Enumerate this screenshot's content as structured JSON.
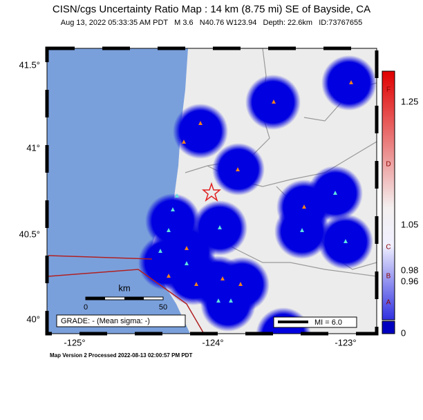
{
  "header": {
    "title": "CISN/cgs Uncertainty Ratio Map : 14 km (8.75 mi) SE of Bayside, CA",
    "subtitle": "Aug 13, 2022 05:33:35 AM PDT   M 3.6   N40.76 W123.94   Depth: 22.6km   ID:73767655"
  },
  "map": {
    "lat_labels": [
      "41.5°",
      "41°",
      "40.5°",
      "40°"
    ],
    "lon_labels": [
      "-125°",
      "-124°",
      "-123°"
    ]
  },
  "scale_bar": {
    "unit": "km",
    "ticks": [
      0,
      50
    ]
  },
  "grade_box": "GRADE: - (Mean sigma: -)",
  "legend": "MI = 6.0",
  "colorbar": {
    "ticks": [
      1.25,
      1.05,
      0.98,
      0.96,
      0
    ],
    "grades": [
      "F",
      "D",
      "C",
      "B",
      "A"
    ]
  },
  "footer": "Map Version 2 Processed 2022-08-13 02:00:57 PM PDT"
}
